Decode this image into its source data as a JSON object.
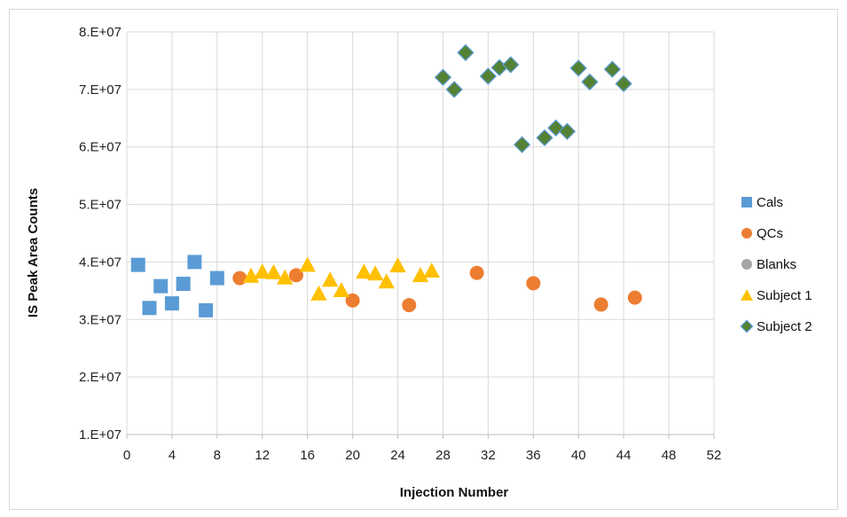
{
  "chart_data": {
    "type": "scatter",
    "xlabel": "Injection Number",
    "ylabel": "IS Peak Area Counts",
    "xlim": [
      0,
      52
    ],
    "ylim": [
      10000000,
      80000000
    ],
    "x_ticks": [
      "0",
      "4",
      "8",
      "12",
      "16",
      "20",
      "24",
      "28",
      "32",
      "36",
      "40",
      "44",
      "48",
      "52"
    ],
    "x_tick_values": [
      0,
      4,
      8,
      12,
      16,
      20,
      24,
      28,
      32,
      36,
      40,
      44,
      48,
      52
    ],
    "y_ticks": [
      "1.E+07",
      "2.E+07",
      "3.E+07",
      "4.E+07",
      "5.E+07",
      "6.E+07",
      "7.E+07",
      "8.E+07"
    ],
    "y_tick_values": [
      10000000,
      20000000,
      30000000,
      40000000,
      50000000,
      60000000,
      70000000,
      80000000
    ],
    "grid": true,
    "legend_position": "right",
    "series": [
      {
        "name": "Cals",
        "marker": "square",
        "color": "#5b9bd5",
        "points": [
          [
            1,
            39500000
          ],
          [
            2,
            32000000
          ],
          [
            3,
            35800000
          ],
          [
            4,
            32800000
          ],
          [
            5,
            36200000
          ],
          [
            6,
            40000000
          ],
          [
            7,
            31600000
          ],
          [
            8,
            37200000
          ]
        ]
      },
      {
        "name": "QCs",
        "marker": "circle",
        "color": "#ed7d31",
        "points": [
          [
            10,
            37200000
          ],
          [
            15,
            37700000
          ],
          [
            20,
            33300000
          ],
          [
            25,
            32500000
          ],
          [
            31,
            38100000
          ],
          [
            36,
            36300000
          ],
          [
            42,
            32600000
          ],
          [
            45,
            33800000
          ]
        ]
      },
      {
        "name": "Blanks",
        "marker": "circle",
        "color": "#a5a5a5",
        "points": []
      },
      {
        "name": "Subject 1",
        "marker": "triangle",
        "color": "#ffc000",
        "points": [
          [
            11,
            37600000
          ],
          [
            12,
            38300000
          ],
          [
            13,
            38200000
          ],
          [
            14,
            37300000
          ],
          [
            16,
            39500000
          ],
          [
            17,
            34500000
          ],
          [
            18,
            36900000
          ],
          [
            19,
            35100000
          ],
          [
            21,
            38300000
          ],
          [
            22,
            38000000
          ],
          [
            23,
            36600000
          ],
          [
            24,
            39400000
          ],
          [
            26,
            37700000
          ],
          [
            27,
            38500000
          ]
        ]
      },
      {
        "name": "Subject 2",
        "marker": "diamond",
        "color": "#548235",
        "points": [
          [
            28,
            72100000
          ],
          [
            29,
            70000000
          ],
          [
            30,
            76400000
          ],
          [
            32,
            72300000
          ],
          [
            33,
            73800000
          ],
          [
            34,
            74300000
          ],
          [
            35,
            60400000
          ],
          [
            37,
            61600000
          ],
          [
            38,
            63300000
          ],
          [
            39,
            62700000
          ],
          [
            40,
            73700000
          ],
          [
            41,
            71300000
          ],
          [
            43,
            73500000
          ],
          [
            44,
            71000000
          ]
        ]
      }
    ]
  }
}
